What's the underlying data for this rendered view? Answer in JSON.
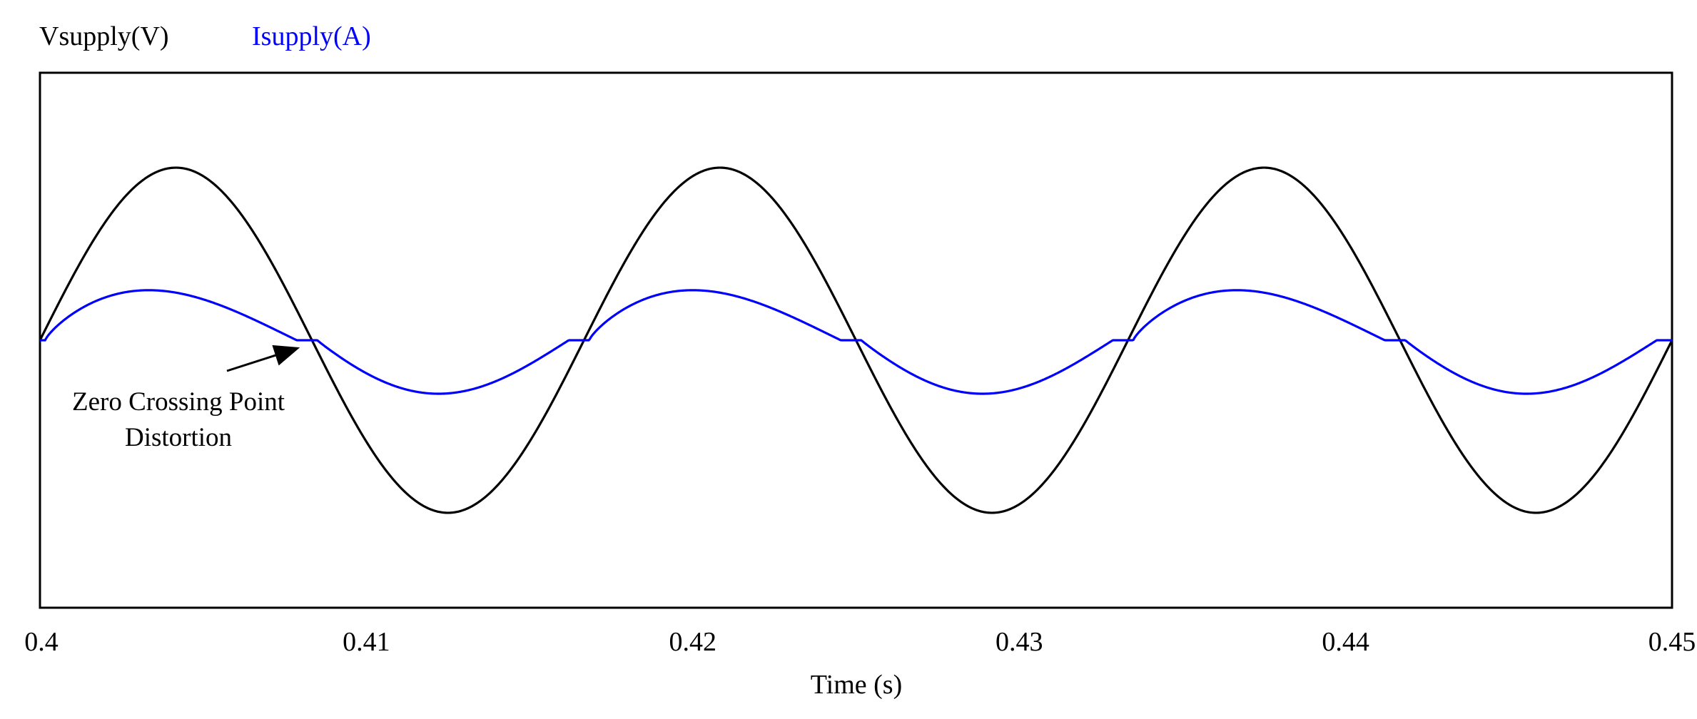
{
  "chart_data": {
    "type": "line",
    "title": "",
    "xlabel": "Time (s)",
    "ylabel": "",
    "xlim": [
      0.4,
      0.45
    ],
    "ylim": [
      -1.55,
      1.55
    ],
    "x_ticks": [
      "0.4",
      "0.41",
      "0.42",
      "0.43",
      "0.44",
      "0.45"
    ],
    "x_tick_values": [
      0.4,
      0.41,
      0.42,
      0.43,
      0.44,
      0.45
    ],
    "y_ticks_shown": false,
    "grid": false,
    "legend_position": "top-left",
    "series": [
      {
        "name": "Vsupply(V)",
        "color": "#000000",
        "waveform": "sine",
        "frequency_hz": 60,
        "amplitude": 1.0,
        "phase_zero_time": 0.4
      },
      {
        "name": "Isupply(A)",
        "color": "#0000ff",
        "waveform": "distorted-sine-with-zero-crossing-flats",
        "frequency_hz": 60,
        "amplitude_positive": 0.29,
        "amplitude_negative": 0.31,
        "phase_zero_time": 0.4,
        "flat_near_zero_fraction_of_period": 0.028
      }
    ],
    "annotations": [
      {
        "text_lines": [
          "Zero Crossing Point",
          "Distortion"
        ],
        "points_to_x": 0.4081,
        "points_to_y": 0.0
      }
    ]
  }
}
